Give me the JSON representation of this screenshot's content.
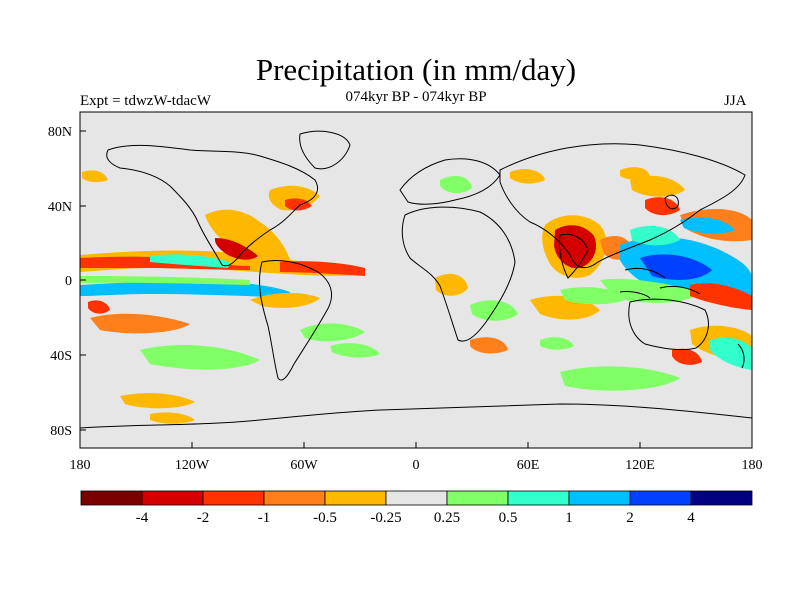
{
  "title": "Precipitation (in mm/day)",
  "subtitle_left": "Expt = tdwzW-tdacW",
  "subtitle_center": "074kyr BP - 074kyr BP",
  "subtitle_right": "JJA",
  "map": {
    "background_color": "#e6e6e6",
    "coastline_color": "#000000",
    "x_tick_labels": [
      "180",
      "120W",
      "60W",
      "0",
      "60E",
      "120E",
      "180"
    ],
    "y_tick_labels": [
      "80N",
      "40N",
      "0",
      "40S",
      "80S"
    ]
  },
  "colorbar": {
    "colors": [
      "#7a0000",
      "#d40000",
      "#ff3300",
      "#ff7f1a",
      "#ffb800",
      "#e6e6e6",
      "#80ff66",
      "#33ffcc",
      "#00bfff",
      "#0040ff",
      "#000080"
    ],
    "labels": [
      "-4",
      "-2",
      "-1",
      "-0.5",
      "-0.25",
      "0.25",
      "0.5",
      "1",
      "2",
      "4"
    ]
  }
}
